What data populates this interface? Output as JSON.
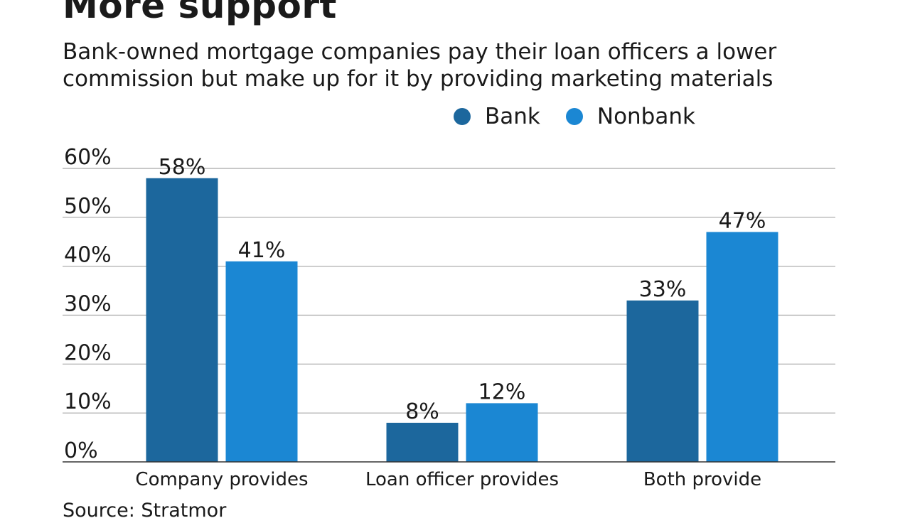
{
  "title": "More support",
  "subtitle_lines": [
    "Bank-owned mortgage companies pay their loan officers a lower",
    "commission but make up for it by providing marketing materials"
  ],
  "source": "Source: Stratmor",
  "colors": {
    "bank": "#1c679d",
    "nonbank": "#1b87d3",
    "grid": "#a6a6a6",
    "axis": "#333333"
  },
  "chart_data": {
    "type": "bar",
    "title": "More support",
    "categories": [
      "Company provides",
      "Loan officer provides",
      "Both provide"
    ],
    "series": [
      {
        "name": "Bank",
        "values": [
          58,
          8,
          33
        ],
        "labels": [
          "58%",
          "8%",
          "33%"
        ]
      },
      {
        "name": "Nonbank",
        "values": [
          41,
          12,
          47
        ],
        "labels": [
          "41%",
          "12%",
          "47%"
        ]
      }
    ],
    "ylim": [
      0,
      60
    ],
    "yticks": [
      0,
      10,
      20,
      30,
      40,
      50,
      60
    ],
    "ytick_labels": [
      "0%",
      "10%",
      "20%",
      "30%",
      "40%",
      "50%",
      "60%"
    ],
    "xlabel": "",
    "ylabel": "",
    "grid": true,
    "legend": "top-right"
  }
}
